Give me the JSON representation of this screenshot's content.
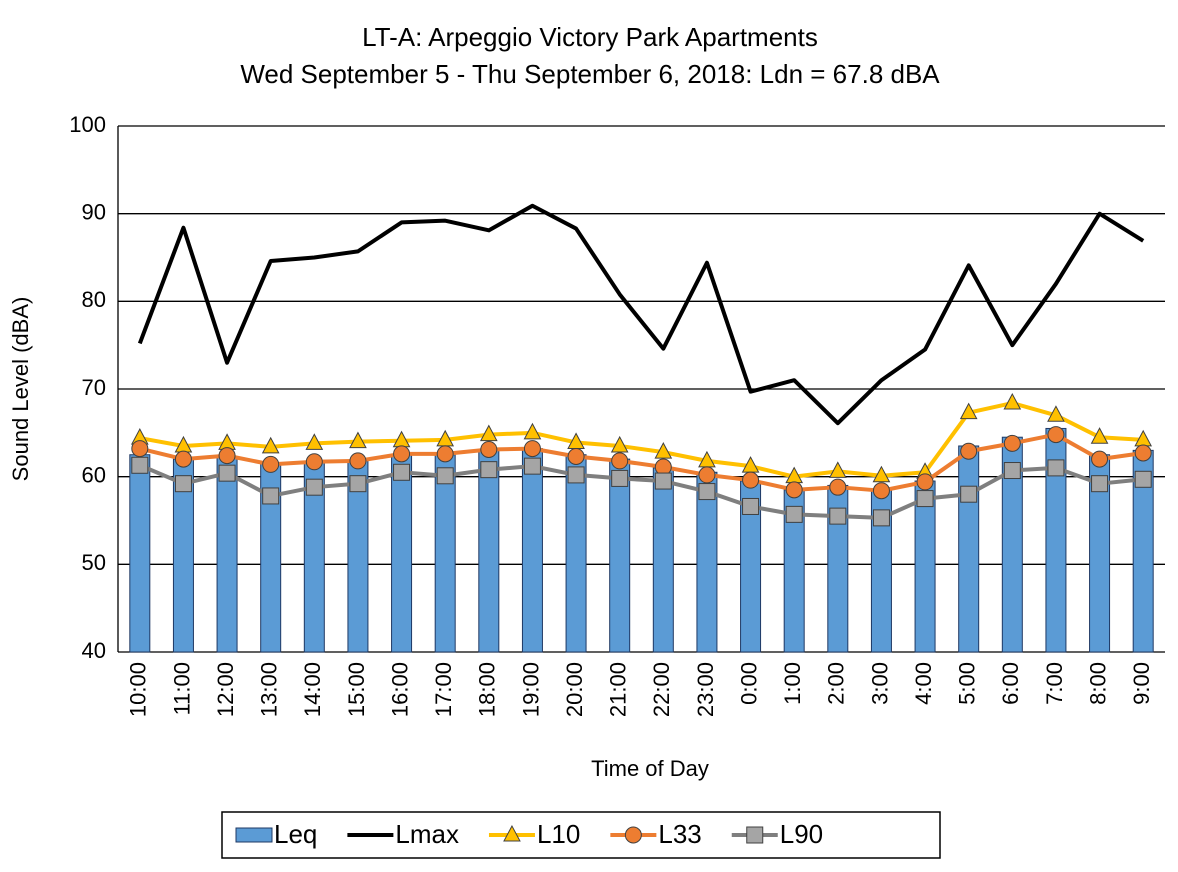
{
  "chart_data": {
    "type": "bar",
    "title": "LT-A: Arpeggio Victory Park Apartments",
    "subtitle": "Wed September 5 - Thu September 6, 2018: Ldn = 67.8 dBA",
    "x_label": "Time of Day",
    "y_label": "Sound Level (dBA)",
    "categories": [
      "10:00",
      "11:00",
      "12:00",
      "13:00",
      "14:00",
      "15:00",
      "16:00",
      "17:00",
      "18:00",
      "19:00",
      "20:00",
      "21:00",
      "22:00",
      "23:00",
      "0:00",
      "1:00",
      "2:00",
      "3:00",
      "4:00",
      "5:00",
      "6:00",
      "7:00",
      "8:00",
      "9:00"
    ],
    "series": [
      {
        "name": "Leq",
        "type": "bar",
        "color": "#5b9bd5",
        "values": [
          62.5,
          62,
          62.3,
          61.5,
          61.7,
          61.8,
          62.5,
          62.5,
          63,
          63.2,
          62.5,
          62,
          61,
          60.5,
          59.5,
          58.5,
          59,
          58.5,
          59.5,
          63.5,
          64.5,
          65.5,
          62.5,
          63
        ]
      },
      {
        "name": "Lmax",
        "type": "line",
        "color": "#000000",
        "marker": "none",
        "values": [
          75.2,
          88.4,
          73,
          84.6,
          85,
          85.7,
          89,
          89.2,
          88.1,
          90.9,
          88.3,
          80.8,
          74.6,
          84.4,
          69.7,
          71,
          66.1,
          71,
          74.5,
          84.1,
          75,
          82,
          90,
          86.9
        ]
      },
      {
        "name": "L10",
        "type": "line",
        "color": "#ffc000",
        "marker": "triangle",
        "values": [
          64.4,
          63.5,
          63.8,
          63.4,
          63.8,
          64,
          64.1,
          64.2,
          64.8,
          65,
          63.9,
          63.5,
          62.8,
          61.8,
          61.2,
          60,
          60.6,
          60.1,
          60.5,
          67.3,
          68.4,
          67,
          64.5,
          64.2
        ]
      },
      {
        "name": "L33",
        "type": "line",
        "color": "#ed7d31",
        "marker": "circle",
        "values": [
          63.2,
          62,
          62.4,
          61.4,
          61.7,
          61.8,
          62.6,
          62.6,
          63.1,
          63.2,
          62.3,
          61.8,
          61.1,
          60.2,
          59.6,
          58.5,
          58.8,
          58.4,
          59.4,
          62.9,
          63.8,
          64.8,
          62,
          62.7
        ]
      },
      {
        "name": "L90",
        "type": "line",
        "color": "#7f7f7f",
        "marker": "square",
        "values": [
          61.3,
          59.2,
          60.4,
          57.8,
          58.8,
          59.2,
          60.5,
          60.1,
          60.8,
          61.2,
          60.2,
          59.8,
          59.5,
          58.3,
          56.6,
          55.7,
          55.5,
          55.3,
          57.5,
          58,
          60.7,
          61,
          59.2,
          59.7
        ]
      }
    ],
    "ylim": [
      40,
      100
    ],
    "yticks": [
      40,
      50,
      60,
      70,
      80,
      90,
      100
    ],
    "grid": true,
    "legend_position": "bottom"
  }
}
